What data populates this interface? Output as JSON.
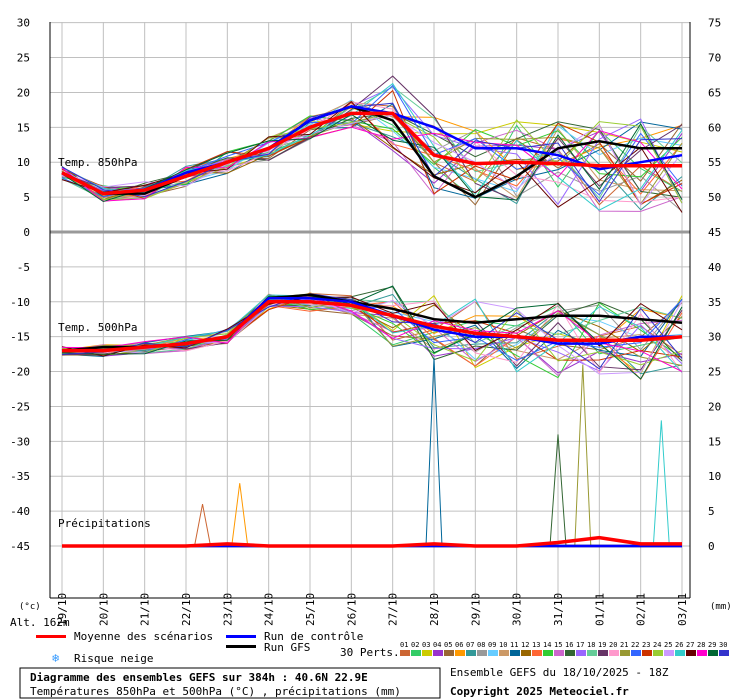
{
  "chart_data": {
    "type": "line",
    "title": "Diagramme des ensembles GEFS sur 384h : 40.6N 22.9E",
    "subtitle": "Températures 850hPa et 500hPa (°C) , précipitations (mm)",
    "ensemble_label": "Ensemble GEFS du 18/10/2025 - 18Z",
    "copyright": "Copyright 2025 Meteociel.fr",
    "altitude": "Alt. 162m",
    "left_unit": "(°c)",
    "right_unit": "(mm)",
    "left_ticks": [
      30,
      25,
      20,
      15,
      10,
      5,
      0,
      -5,
      -10,
      -15,
      -20,
      -25,
      -30,
      -35,
      -40,
      -45
    ],
    "right_ticks": [
      75,
      70,
      65,
      60,
      55,
      50,
      45,
      40,
      35,
      30,
      25,
      20,
      15,
      10,
      5,
      0
    ],
    "x_labels": [
      "19/10",
      "20/10",
      "21/10",
      "22/10",
      "23/10",
      "24/10",
      "25/10",
      "26/10",
      "27/10",
      "28/10",
      "29/10",
      "30/10",
      "31/10",
      "01/11",
      "02/11",
      "03/11"
    ],
    "panel_labels": {
      "t850": "Temp. 850hPa",
      "t500": "Temp. 500hPa",
      "precip": "Précipitations"
    },
    "legend": {
      "mean": "Moyenne des scénarios",
      "control": "Run de contrôle",
      "gfs": "Run GFS",
      "snow": "Risque neige",
      "perts_label": "30 Perts.",
      "pert_numbers": [
        "01",
        "02",
        "03",
        "04",
        "05",
        "06",
        "07",
        "08",
        "09",
        "10",
        "11",
        "12",
        "13",
        "14",
        "15",
        "16",
        "17",
        "18",
        "19",
        "20",
        "21",
        "22",
        "23",
        "24",
        "25",
        "26",
        "27",
        "28",
        "29",
        "30"
      ]
    },
    "colors": {
      "mean": "#ff0000",
      "control": "#0000ff",
      "gfs": "#000000",
      "grid": "#c0c0c0",
      "snow": "#3399ff",
      "perts": [
        "#cc6633",
        "#33cc66",
        "#cccc00",
        "#9933cc",
        "#996633",
        "#ff9900",
        "#339999",
        "#999999",
        "#66ccff",
        "#cc9966",
        "#006699",
        "#996600",
        "#ff6633",
        "#33cc33",
        "#cc66cc",
        "#336633",
        "#9966ff",
        "#66cc99",
        "#663366",
        "#ff99cc",
        "#999933",
        "#3366ff",
        "#cc3300",
        "#99cc33",
        "#cc99ff",
        "#33cccc",
        "#660000",
        "#ff00cc",
        "#006633",
        "#3333cc"
      ]
    },
    "t850": {
      "mean": [
        8.5,
        5.5,
        6,
        8,
        10,
        12,
        15,
        17,
        17,
        11,
        9.8,
        10,
        9.8,
        9.5,
        9.5,
        9.5
      ],
      "control": [
        8.5,
        5.5,
        6,
        8.5,
        10,
        12,
        16,
        18,
        17,
        15,
        12,
        12,
        11,
        9,
        10,
        11
      ],
      "gfs": [
        8.5,
        5.5,
        5.5,
        8,
        10,
        12,
        16,
        18,
        16,
        8,
        5,
        8,
        12,
        13,
        12,
        12
      ]
    },
    "t500": {
      "mean": [
        -17,
        -17,
        -16.5,
        -16,
        -15,
        -10,
        -10,
        -10.5,
        -12,
        -13.5,
        -14.5,
        -15,
        -15.5,
        -15.5,
        -15.5,
        -15
      ],
      "control": [
        -17,
        -17,
        -16.5,
        -16,
        -15,
        -9.5,
        -9.5,
        -10,
        -12,
        -14,
        -15,
        -15,
        -16,
        -16,
        -15,
        -15
      ],
      "gfs": [
        -17,
        -16.5,
        -16.5,
        -16,
        -15,
        -9.5,
        -9,
        -10,
        -11,
        -12.5,
        -13,
        -12.5,
        -12,
        -12,
        -12.5,
        -13
      ]
    },
    "precip": {
      "mean": [
        0,
        0,
        0,
        0,
        0.3,
        0,
        0,
        0,
        0,
        0.3,
        0,
        0,
        0.5,
        1.2,
        0.3,
        0.3
      ],
      "control": [
        0,
        0,
        0,
        0,
        0,
        0,
        0,
        0,
        0,
        0,
        0,
        0,
        0,
        0,
        0,
        0
      ],
      "gfs": [
        0,
        0,
        0,
        0,
        0,
        0,
        0,
        0,
        0,
        0,
        0,
        0,
        0,
        0,
        0,
        0
      ],
      "spikes": [
        {
          "t": 3.4,
          "v": 6
        },
        {
          "t": 4.3,
          "v": 9
        },
        {
          "t": 9.0,
          "v": 27
        },
        {
          "t": 12.0,
          "v": 16
        },
        {
          "t": 12.6,
          "v": 26
        },
        {
          "t": 14.5,
          "v": 18
        }
      ]
    }
  }
}
